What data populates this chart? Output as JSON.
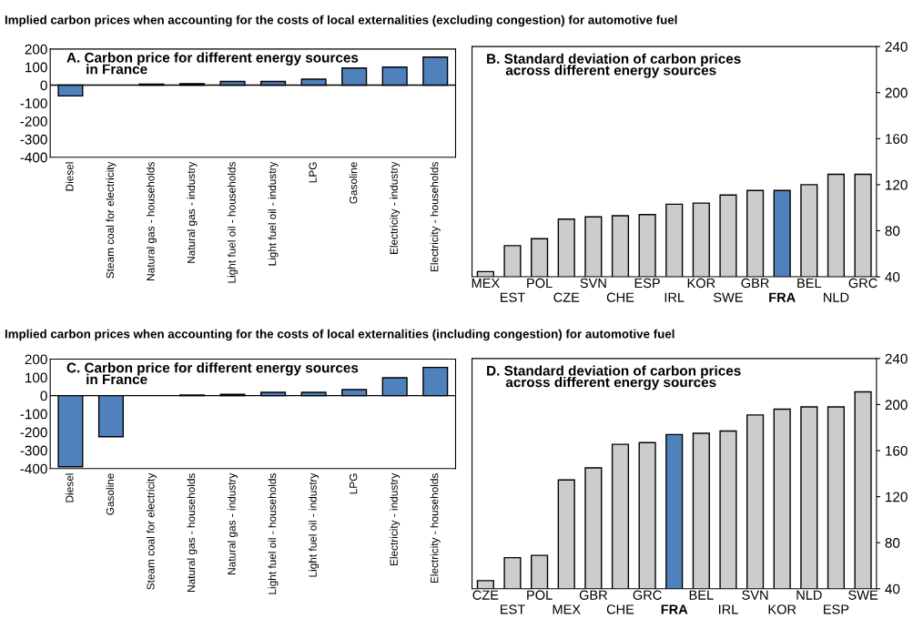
{
  "chart_data": [
    {
      "type": "bar",
      "title": "A. Carbon price for different energy sources\n     in France",
      "annotations": [
        "Implied carbon prices when accounting for the costs of local externalities (excluding congestion) for automotive fuel"
      ],
      "categories": [
        "Diesel",
        "Steam coal for electricity",
        "Natural gas - households",
        "Natural gas - industry",
        "Light fuel oil - households",
        "Light fuel oil - industry",
        "LPG",
        "Gasoline",
        "Electricity - industry",
        "Electricity - households"
      ],
      "values": [
        -60,
        0,
        5,
        8,
        20,
        20,
        33,
        95,
        100,
        155
      ],
      "color": "#4f81bd",
      "ref_lines": [
        {
          "axis": "y",
          "value": 0,
          "color": "#000000"
        }
      ],
      "ylim": [
        -400,
        200
      ],
      "yticks": [
        -400,
        -300,
        -200,
        -100,
        0,
        100,
        200
      ],
      "grid": false,
      "legend": false
    },
    {
      "type": "bar",
      "title": "B. Standard deviation of carbon prices\n     across different energy sources",
      "categories": [
        "MEX",
        "EST",
        "POL",
        "CZE",
        "SVN",
        "CHE",
        "ESP",
        "IRL",
        "KOR",
        "SWE",
        "GBR",
        "FRA",
        "BEL",
        "NLD",
        "GRC"
      ],
      "values": [
        44.5,
        67,
        73,
        90,
        92,
        93,
        94,
        103,
        104,
        111,
        115,
        115,
        120,
        129,
        129
      ],
      "colors": [
        "#cccccc",
        "#cccccc",
        "#cccccc",
        "#cccccc",
        "#cccccc",
        "#cccccc",
        "#cccccc",
        "#cccccc",
        "#cccccc",
        "#cccccc",
        "#cccccc",
        "#4f81bd",
        "#cccccc",
        "#cccccc",
        "#cccccc"
      ],
      "ylim": [
        40,
        240
      ],
      "yticks": [
        40,
        80,
        120,
        160,
        200,
        240
      ],
      "grid": false,
      "legend": false
    },
    {
      "type": "bar",
      "title": "C. Carbon price for different energy sources\n     in France",
      "annotations": [
        "Implied carbon prices when accounting for the costs of local externalities (including congestion) for automotive fuel"
      ],
      "categories": [
        "Diesel",
        "Gasoline",
        "Steam coal for electricity",
        "Natural gas - households",
        "Natural gas - industry",
        "Light fuel oil - households",
        "Light fuel oil - industry",
        "LPG",
        "Electricity - industry",
        "Electricity - households"
      ],
      "values": [
        -390,
        -225,
        0,
        3,
        7,
        18,
        18,
        33,
        98,
        155
      ],
      "color": "#4f81bd",
      "ref_lines": [
        {
          "axis": "y",
          "value": 0,
          "color": "#000000"
        }
      ],
      "ylim": [
        -400,
        200
      ],
      "yticks": [
        -400,
        -300,
        -200,
        -100,
        0,
        100,
        200
      ],
      "grid": false,
      "legend": false
    },
    {
      "type": "bar",
      "title": "D. Standard deviation of carbon prices\n     across different energy sources",
      "categories": [
        "CZE",
        "EST",
        "POL",
        "MEX",
        "GBR",
        "CHE",
        "GRC",
        "FRA",
        "BEL",
        "IRL",
        "SVN",
        "KOR",
        "NLD",
        "ESP",
        "SWE"
      ],
      "values": [
        47,
        67,
        69,
        134.5,
        145,
        165.5,
        167,
        174,
        175,
        177,
        191,
        196,
        198,
        198,
        211
      ],
      "colors": [
        "#cccccc",
        "#cccccc",
        "#cccccc",
        "#cccccc",
        "#cccccc",
        "#cccccc",
        "#cccccc",
        "#4f81bd",
        "#cccccc",
        "#cccccc",
        "#cccccc",
        "#cccccc",
        "#cccccc",
        "#cccccc",
        "#cccccc"
      ],
      "ylim": [
        40,
        240
      ],
      "yticks": [
        40,
        80,
        120,
        160,
        200,
        240
      ],
      "grid": false,
      "legend": false
    }
  ]
}
